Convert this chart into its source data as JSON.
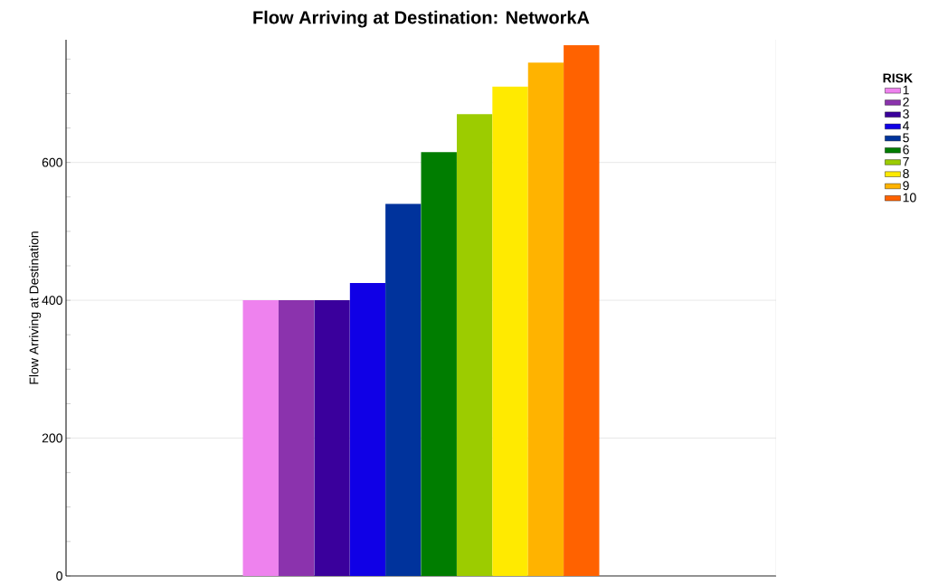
{
  "chart_data": {
    "type": "bar",
    "title": "Flow Arriving at Destination: NetworkA",
    "ylabel": "Flow Arriving at Destination",
    "legend_title": "RISK",
    "categories": [
      null
    ],
    "series": [
      {
        "name": "1",
        "color": "#ee82ee",
        "values": [
          400
        ]
      },
      {
        "name": "2",
        "color": "#8b33ad",
        "values": [
          400
        ]
      },
      {
        "name": "3",
        "color": "#3a009c",
        "values": [
          400
        ]
      },
      {
        "name": "4",
        "color": "#1000e6",
        "values": [
          425
        ]
      },
      {
        "name": "5",
        "color": "#00339c",
        "values": [
          540
        ]
      },
      {
        "name": "6",
        "color": "#007d00",
        "values": [
          615
        ]
      },
      {
        "name": "7",
        "color": "#9ccc00",
        "values": [
          670
        ]
      },
      {
        "name": "8",
        "color": "#ffea00",
        "values": [
          710
        ]
      },
      {
        "name": "9",
        "color": "#ffb300",
        "values": [
          745
        ]
      },
      {
        "name": "10",
        "color": "#ff6200",
        "values": [
          770
        ]
      }
    ],
    "ylim": [
      0,
      778
    ],
    "yticks": [
      0,
      {
        "value": 50,
        "label": null
      },
      {
        "value": 100,
        "label": null
      },
      {
        "value": 150,
        "label": null
      },
      200,
      {
        "value": 250,
        "label": null
      },
      {
        "value": 300,
        "label": null
      },
      {
        "value": 350,
        "label": null
      },
      400,
      {
        "value": 450,
        "label": null
      },
      {
        "value": 500,
        "label": null
      },
      {
        "value": 550,
        "label": null
      },
      600,
      {
        "value": 650,
        "label": null
      },
      {
        "value": 700,
        "label": null
      },
      {
        "value": 750,
        "label": null
      }
    ],
    "grid": "y",
    "legend": "top right"
  }
}
